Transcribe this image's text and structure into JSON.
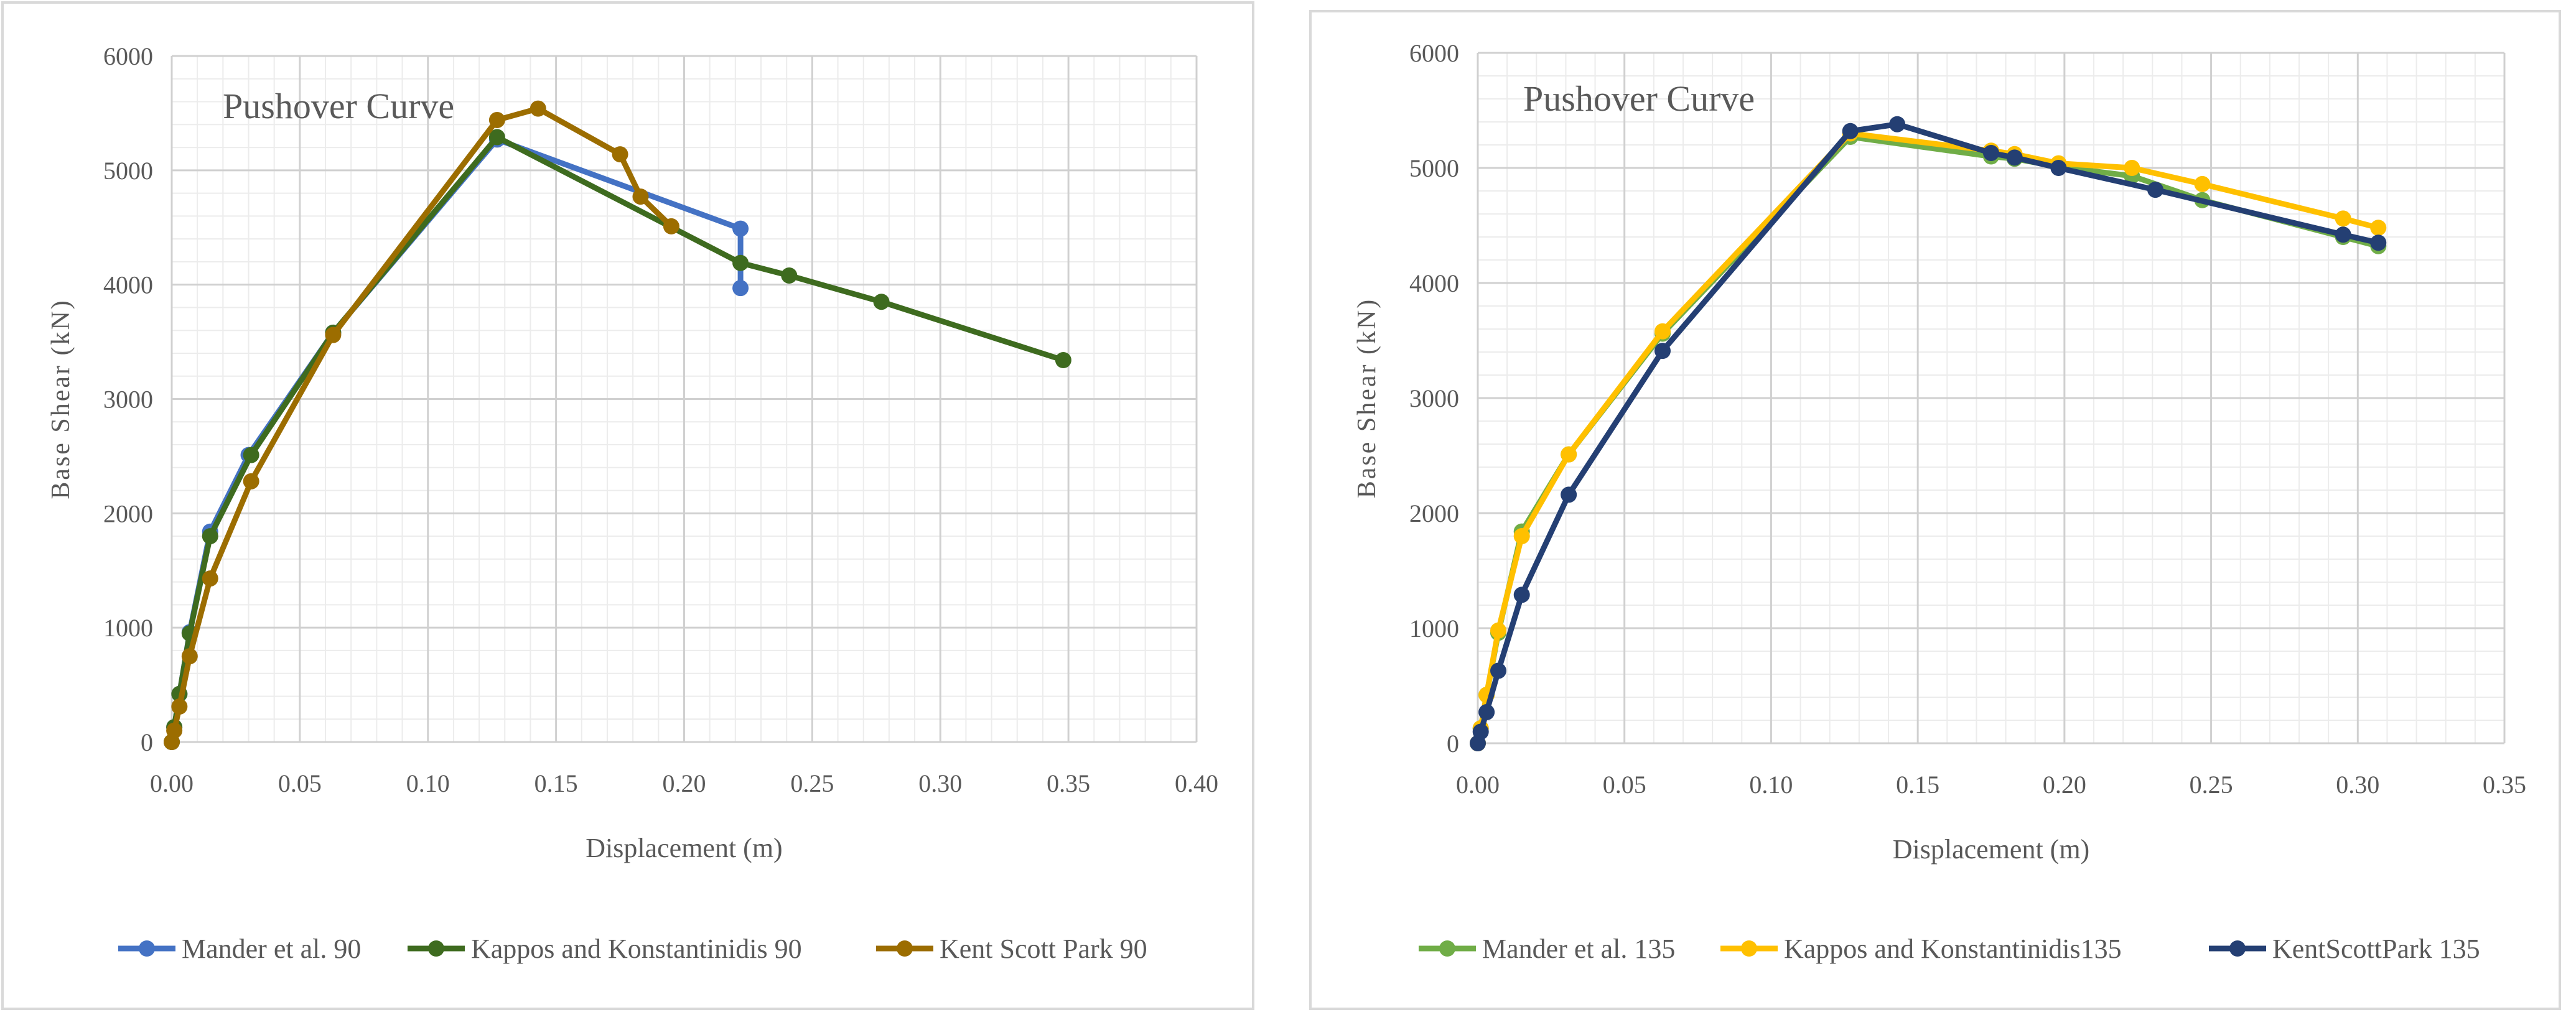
{
  "chart_data": [
    {
      "type": "line",
      "title": "Pushover Curve",
      "xlabel": "Displacement (m)",
      "ylabel": "Base Shear (kN)",
      "xlim": [
        0,
        0.4
      ],
      "ylim": [
        0,
        6000
      ],
      "xticks": [
        "0.00",
        "0.05",
        "0.10",
        "0.15",
        "0.20",
        "0.25",
        "0.30",
        "0.35",
        "0.40"
      ],
      "yticks": [
        "0",
        "1000",
        "2000",
        "3000",
        "4000",
        "5000",
        "6000"
      ],
      "grid": "on",
      "legend": "bottom",
      "series": [
        {
          "name": "Mander et al. 90",
          "color": "#4472C4",
          "points": [
            [
              0,
              0
            ],
            [
              0.001,
              130
            ],
            [
              0.003,
              420
            ],
            [
              0.007,
              960
            ],
            [
              0.015,
              1840
            ],
            [
              0.03,
              2510
            ],
            [
              0.063,
              3580
            ],
            [
              0.127,
              5270
            ],
            [
              0.222,
              4490
            ],
            [
              0.222,
              3970
            ]
          ]
        },
        {
          "name": "Kappos and Konstantinidis 90",
          "color": "#3E6B1F",
          "points": [
            [
              0,
              0
            ],
            [
              0.001,
              130
            ],
            [
              0.003,
              420
            ],
            [
              0.007,
              950
            ],
            [
              0.015,
              1800
            ],
            [
              0.031,
              2510
            ],
            [
              0.063,
              3580
            ],
            [
              0.127,
              5290
            ],
            [
              0.222,
              4190
            ],
            [
              0.241,
              4080
            ],
            [
              0.277,
              3850
            ],
            [
              0.348,
              3340
            ]
          ]
        },
        {
          "name": "Kent Scott Park 90",
          "color": "#9C6D00",
          "points": [
            [
              0,
              0
            ],
            [
              0.001,
              100
            ],
            [
              0.003,
              310
            ],
            [
              0.007,
              750
            ],
            [
              0.015,
              1430
            ],
            [
              0.031,
              2280
            ],
            [
              0.063,
              3560
            ],
            [
              0.127,
              5440
            ],
            [
              0.143,
              5540
            ],
            [
              0.175,
              5140
            ],
            [
              0.183,
              4770
            ],
            [
              0.195,
              4510
            ]
          ]
        }
      ]
    },
    {
      "type": "line",
      "title": "Pushover Curve",
      "xlabel": "Displacement (m)",
      "ylabel": "Base Shear (kN)",
      "xlim": [
        0,
        0.35
      ],
      "ylim": [
        0,
        6000
      ],
      "xticks": [
        "0.00",
        "0.05",
        "0.10",
        "0.15",
        "0.20",
        "0.25",
        "0.30",
        "0.35"
      ],
      "yticks": [
        "0",
        "1000",
        "2000",
        "3000",
        "4000",
        "5000",
        "6000"
      ],
      "grid": "on",
      "legend": "bottom",
      "series": [
        {
          "name": "Mander et al. 135",
          "color": "#70AD47",
          "points": [
            [
              0,
              0
            ],
            [
              0.001,
              130
            ],
            [
              0.003,
              420
            ],
            [
              0.007,
              960
            ],
            [
              0.015,
              1840
            ],
            [
              0.031,
              2510
            ],
            [
              0.063,
              3560
            ],
            [
              0.127,
              5270
            ],
            [
              0.175,
              5100
            ],
            [
              0.183,
              5080
            ],
            [
              0.198,
              5010
            ],
            [
              0.223,
              4930
            ],
            [
              0.247,
              4720
            ],
            [
              0.295,
              4400
            ],
            [
              0.307,
              4320
            ]
          ]
        },
        {
          "name": "Kappos and Konstantinidis135",
          "color": "#FFC000",
          "points": [
            [
              0,
              0
            ],
            [
              0.001,
              130
            ],
            [
              0.003,
              420
            ],
            [
              0.007,
              980
            ],
            [
              0.015,
              1800
            ],
            [
              0.031,
              2510
            ],
            [
              0.063,
              3580
            ],
            [
              0.127,
              5300
            ],
            [
              0.175,
              5150
            ],
            [
              0.183,
              5120
            ],
            [
              0.198,
              5040
            ],
            [
              0.223,
              5000
            ],
            [
              0.247,
              4860
            ],
            [
              0.295,
              4560
            ],
            [
              0.307,
              4480
            ]
          ]
        },
        {
          "name": "KentScottPark 135",
          "color": "#243F73",
          "points": [
            [
              0,
              0
            ],
            [
              0.001,
              100
            ],
            [
              0.003,
              270
            ],
            [
              0.007,
              630
            ],
            [
              0.015,
              1290
            ],
            [
              0.031,
              2160
            ],
            [
              0.063,
              3410
            ],
            [
              0.127,
              5320
            ],
            [
              0.143,
              5380
            ],
            [
              0.175,
              5130
            ],
            [
              0.183,
              5090
            ],
            [
              0.198,
              5000
            ],
            [
              0.231,
              4810
            ],
            [
              0.295,
              4420
            ],
            [
              0.307,
              4350
            ]
          ]
        }
      ]
    }
  ]
}
